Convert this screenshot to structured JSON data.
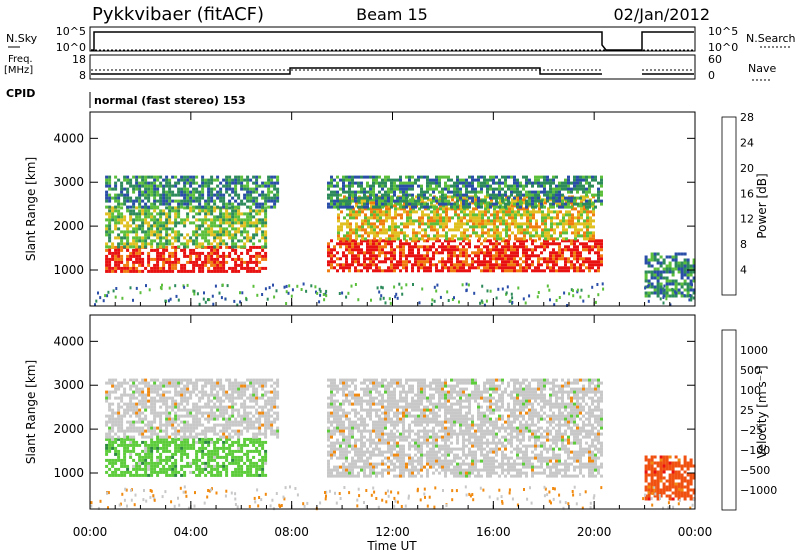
{
  "header": {
    "radar": "Pykkvibaer (fitACF)",
    "beam": "Beam 15",
    "date": "02/Jan/2012"
  },
  "nsky_panel": {
    "left_label": "N.Sky",
    "right_label": "N.Search",
    "left_ticks": [
      "10^5",
      "10^0"
    ],
    "right_ticks": [
      "10^5",
      "10^0"
    ]
  },
  "freq_panel": {
    "left_label_1": "Freq.",
    "left_label_2": "[MHz]",
    "right_label": "Nave",
    "left_ticks": [
      "18",
      "8"
    ],
    "right_ticks": [
      "60",
      "0"
    ],
    "cpid_label": "CPID",
    "cpid_value": "normal (fast stereo) 153"
  },
  "chart_data": [
    {
      "type": "heatmap",
      "name": "power",
      "ylabel": "Slant Range [km]",
      "y_ticks": [
        "1000",
        "2000",
        "3000",
        "4000"
      ],
      "ylim": [
        180,
        4600
      ],
      "colorbar_label": "Power [dB]",
      "colorbar_ticks": [
        "4",
        "8",
        "12",
        "16",
        "20",
        "24",
        "28"
      ],
      "colorbar_colors": [
        "#1f2fe0",
        "#2a4ea8",
        "#2d8a5a",
        "#5cbf3c",
        "#e0c020",
        "#f07c10",
        "#e81010"
      ],
      "regions": [
        {
          "t0": 0.6,
          "t1": 7.0,
          "r0": 950,
          "r1": 1550,
          "level": 6
        },
        {
          "t0": 0.6,
          "t1": 7.0,
          "r0": 1500,
          "r1": 2450,
          "level": 3
        },
        {
          "t0": 0.6,
          "t1": 7.5,
          "r0": 2450,
          "r1": 3150,
          "level": 2
        },
        {
          "t0": 9.4,
          "t1": 20.3,
          "r0": 950,
          "r1": 1700,
          "level": 6
        },
        {
          "t0": 9.8,
          "t1": 20.0,
          "r0": 1700,
          "r1": 2700,
          "level": 4
        },
        {
          "t0": 9.4,
          "t1": 20.3,
          "r0": 2400,
          "r1": 3150,
          "level": 2
        },
        {
          "t0": 22.0,
          "t1": 24.0,
          "r0": 400,
          "r1": 1400,
          "level": 2
        }
      ]
    },
    {
      "type": "heatmap",
      "name": "velocity",
      "ylabel": "Slant Range [km]",
      "y_ticks": [
        "1000",
        "2000",
        "3000",
        "4000"
      ],
      "ylim": [
        180,
        4600
      ],
      "colorbar_label": "Velocity [m s⁻¹]",
      "colorbar_ticks": [
        "1000",
        "500",
        "100",
        "25",
        "−25",
        "−100",
        "−500",
        "−1000"
      ],
      "colorbar_colors": [
        "#1f3fd0",
        "#2a6a9a",
        "#2c8a40",
        "#5ccc3a",
        "#c8c8c8",
        "#f08a10",
        "#f05010",
        "#e81010"
      ],
      "regions": [
        {
          "t0": 0.6,
          "t1": 7.0,
          "r0": 950,
          "r1": 1800,
          "level": 3
        },
        {
          "t0": 0.6,
          "t1": 7.5,
          "r0": 1800,
          "r1": 3150,
          "level": 4
        },
        {
          "t0": 9.4,
          "t1": 20.3,
          "r0": 950,
          "r1": 3150,
          "level": 4
        },
        {
          "t0": 22.0,
          "t1": 24.0,
          "r0": 400,
          "r1": 1400,
          "level": 6
        }
      ]
    }
  ],
  "time_axis": {
    "ticks": [
      "00:00",
      "04:00",
      "08:00",
      "12:00",
      "16:00",
      "20:00",
      "00:00"
    ],
    "xlabel": "Time UT",
    "xlim_hours": [
      0,
      24
    ]
  }
}
